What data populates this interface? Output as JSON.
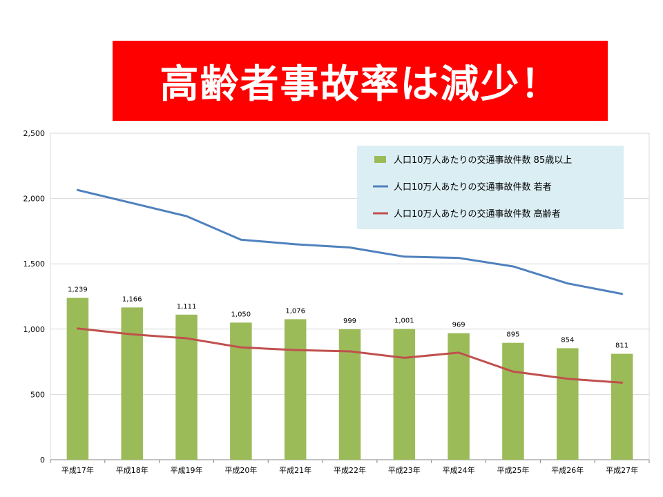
{
  "banner": {
    "title": "高齢者事故率は減少！",
    "background": "#ff0000",
    "text_color": "#ffffff"
  },
  "chart_data": {
    "type": "bar",
    "title": "",
    "xlabel": "",
    "ylabel": "",
    "ylim": [
      0,
      2500
    ],
    "yticks": [
      "0",
      "500",
      "1,000",
      "1,500",
      "2,000",
      "2,500"
    ],
    "grid": true,
    "legend_position": "top-right",
    "categories": [
      "平成17年",
      "平成18年",
      "平成19年",
      "平成20年",
      "平成21年",
      "平成22年",
      "平成23年",
      "平成24年",
      "平成25年",
      "平成26年",
      "平成27年"
    ],
    "series": [
      {
        "name": "人口10万人あたりの交通事故件数 85歳以上",
        "type": "bar",
        "color": "#9bbb59",
        "values": [
          1239,
          1166,
          1111,
          1050,
          1076,
          999,
          1001,
          969,
          895,
          854,
          811
        ],
        "data_labels": [
          "1,239",
          "1,166",
          "1,111",
          "1,050",
          "1,076",
          "999",
          "1,001",
          "969",
          "895",
          "854",
          "811"
        ]
      },
      {
        "name": "人口10万人あたりの交通事故件数 若者",
        "type": "line",
        "color": "#4f81bd",
        "values": [
          2065,
          1965,
          1865,
          1685,
          1650,
          1625,
          1555,
          1545,
          1480,
          1350,
          1270
        ]
      },
      {
        "name": "人口10万人あたりの交通事故件数 高齢者",
        "type": "line",
        "color": "#c0504d",
        "values": [
          1005,
          960,
          930,
          860,
          840,
          830,
          780,
          820,
          675,
          620,
          590
        ]
      }
    ]
  }
}
